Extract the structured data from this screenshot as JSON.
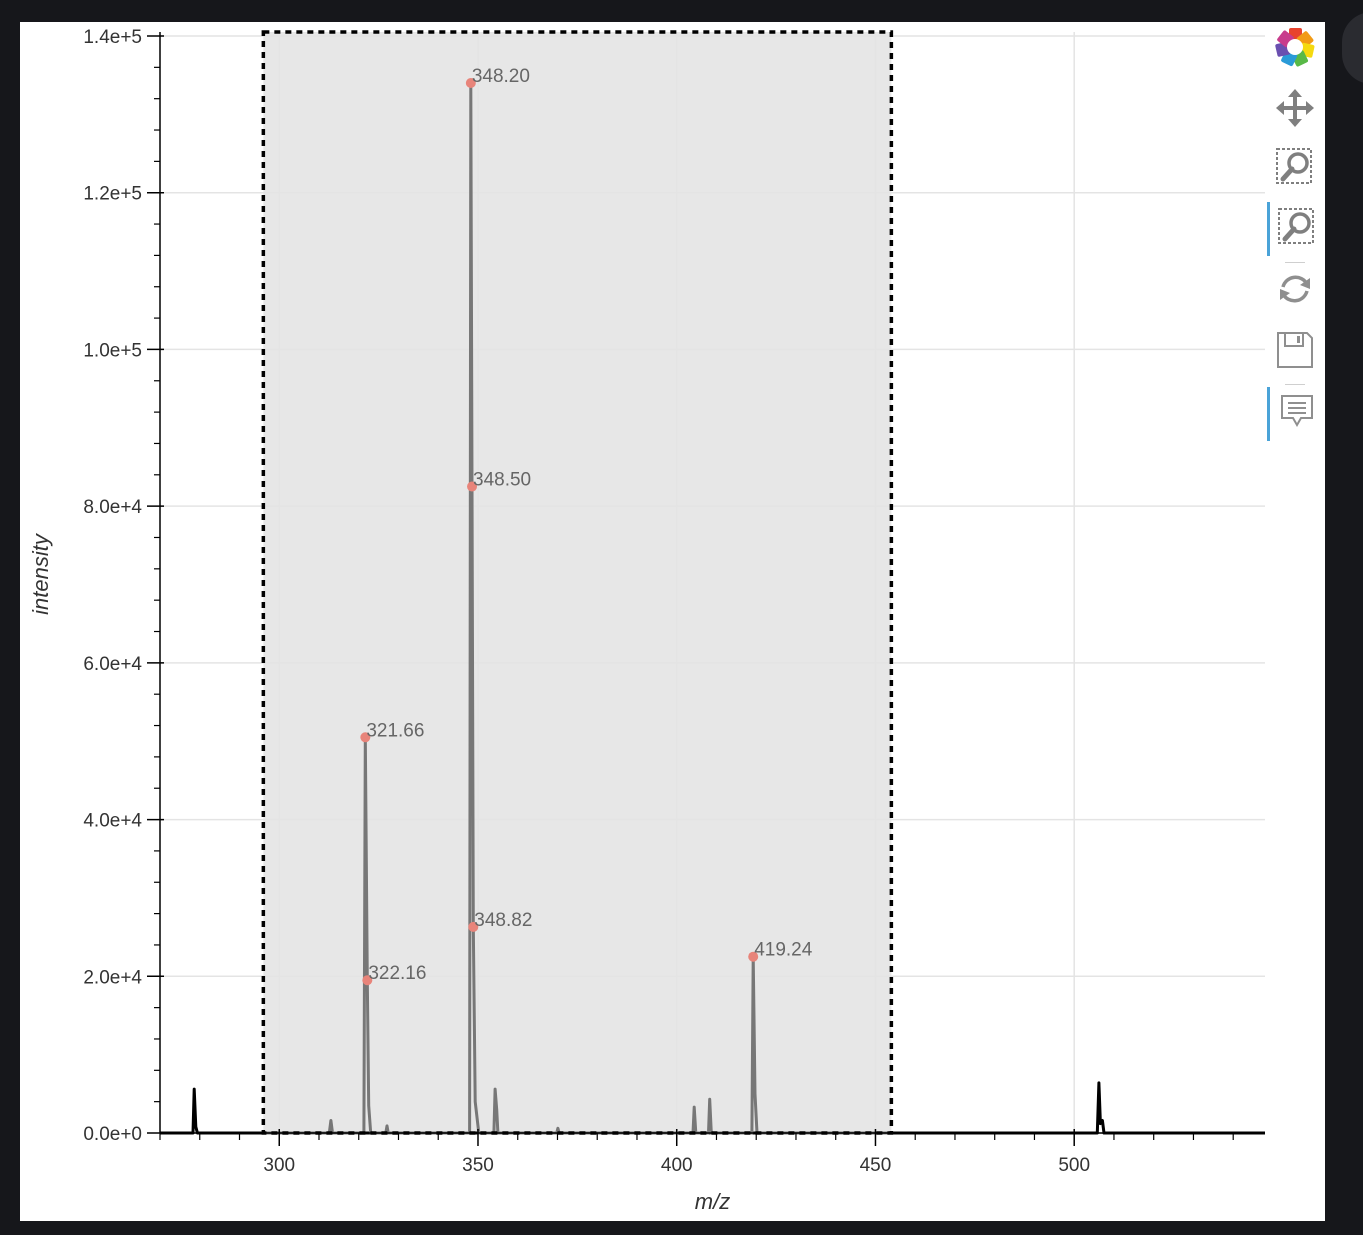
{
  "chart_data": {
    "type": "line",
    "xlabel": "m/z",
    "ylabel": "intensity",
    "xlim": [
      270,
      548
    ],
    "ylim": [
      0,
      140000
    ],
    "x_ticks": [
      300,
      350,
      400,
      450,
      500
    ],
    "x_tick_labels": [
      "300",
      "350",
      "400",
      "450",
      "500"
    ],
    "y_ticks": [
      0,
      20000,
      40000,
      60000,
      80000,
      100000,
      120000,
      140000
    ],
    "y_tick_labels": [
      "0.0e+0",
      "2.0e+4",
      "4.0e+4",
      "6.0e+4",
      "8.0e+4",
      "1.0e+5",
      "1.2e+5",
      "1.4e+5"
    ],
    "grid": true,
    "selection": {
      "x_start": 296,
      "x_end": 454
    },
    "series": [
      {
        "color": "#000000",
        "points": [
          [
            270,
            0
          ],
          [
            278.3,
            0
          ],
          [
            278.6,
            5600
          ],
          [
            279.0,
            800
          ],
          [
            279.4,
            0
          ],
          [
            505.8,
            0
          ],
          [
            506.2,
            6400
          ],
          [
            506.6,
            1200
          ],
          [
            507.1,
            1600
          ],
          [
            507.5,
            0
          ],
          [
            548,
            0
          ]
        ]
      },
      {
        "color": "#777777",
        "points": [
          [
            296,
            0
          ],
          [
            312.6,
            0
          ],
          [
            313.0,
            1600
          ],
          [
            313.4,
            0
          ],
          [
            321.3,
            0
          ],
          [
            321.66,
            50500
          ],
          [
            322.16,
            19500
          ],
          [
            322.5,
            3500
          ],
          [
            323.0,
            0
          ],
          [
            326.8,
            0
          ],
          [
            327.1,
            900
          ],
          [
            327.4,
            0
          ],
          [
            347.9,
            0
          ],
          [
            348.2,
            134000
          ],
          [
            348.5,
            82500
          ],
          [
            348.82,
            26300
          ],
          [
            349.3,
            4000
          ],
          [
            350.2,
            0
          ],
          [
            354.0,
            0
          ],
          [
            354.3,
            5600
          ],
          [
            354.7,
            3000
          ],
          [
            355.0,
            0
          ],
          [
            369.8,
            0
          ],
          [
            370.1,
            600
          ],
          [
            370.4,
            0
          ],
          [
            404.1,
            0
          ],
          [
            404.4,
            3300
          ],
          [
            404.8,
            0
          ],
          [
            408.0,
            0
          ],
          [
            408.3,
            4300
          ],
          [
            408.7,
            0
          ],
          [
            418.9,
            0
          ],
          [
            419.24,
            22500
          ],
          [
            419.7,
            5000
          ],
          [
            420.2,
            0
          ],
          [
            454,
            0
          ]
        ]
      }
    ],
    "peaks": [
      {
        "mz": 348.2,
        "intensity": 134000,
        "label": "348.20"
      },
      {
        "mz": 348.5,
        "intensity": 82500,
        "label": "348.50"
      },
      {
        "mz": 321.66,
        "intensity": 50500,
        "label": "321.66"
      },
      {
        "mz": 348.82,
        "intensity": 26300,
        "label": "348.82"
      },
      {
        "mz": 322.16,
        "intensity": 19500,
        "label": "322.16"
      },
      {
        "mz": 419.24,
        "intensity": 22500,
        "label": "419.24"
      }
    ],
    "peak_marker_color": "#e8847a"
  },
  "toolbar": {
    "tools": [
      {
        "name": "bokeh-logo-icon",
        "active": false,
        "clickable": true
      },
      {
        "name": "pan-icon",
        "active": false,
        "clickable": true
      },
      {
        "name": "box-zoom-icon",
        "active": false,
        "clickable": true
      },
      {
        "name": "box-zoom-icon",
        "active": true,
        "clickable": true
      },
      {
        "name": "reset-icon",
        "active": false,
        "clickable": true
      },
      {
        "name": "save-icon",
        "active": false,
        "clickable": true
      },
      {
        "name": "hover-icon",
        "active": true,
        "clickable": true
      }
    ],
    "accent_color": "#4aa3d8"
  }
}
